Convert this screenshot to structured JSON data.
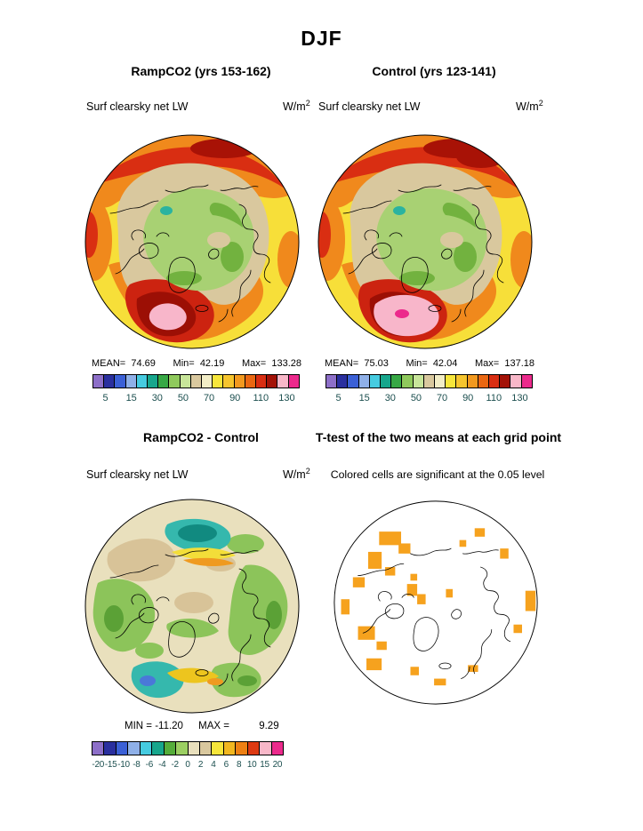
{
  "header": {
    "title": "DJF"
  },
  "panels": [
    {
      "title": "RampCO2 (yrs 153-162)",
      "field": "Surf clearsky net LW",
      "units_base": "W/m",
      "units_exp": "2",
      "stats": {
        "mean_label": "MEAN=",
        "mean": "74.69",
        "min_label": "Min=",
        "min": "42.19",
        "max_label": "Max=",
        "max": "133.28"
      },
      "colorbar": {
        "colors": [
          "#8d6fc8",
          "#2a2f9e",
          "#3b60d6",
          "#8fb0e8",
          "#46cbe0",
          "#17a68c",
          "#37a845",
          "#8fc95c",
          "#c8e59a",
          "#d9c89e",
          "#f2edc6",
          "#f7e63b",
          "#f6c52e",
          "#f2991f",
          "#ea6712",
          "#d92e12",
          "#a31207",
          "#f8b7c8",
          "#ec2a8c"
        ],
        "ticks": [
          "5",
          "15",
          "30",
          "50",
          "70",
          "90",
          "110",
          "130"
        ]
      }
    },
    {
      "title": "Control (yrs 123-141)",
      "field": "Surf clearsky net LW",
      "units_base": "W/m",
      "units_exp": "2",
      "stats": {
        "mean_label": "MEAN=",
        "mean": "75.03",
        "min_label": "Min=",
        "min": "42.04",
        "max_label": "Max=",
        "max": "137.18"
      },
      "colorbar": {
        "colors": [
          "#8d6fc8",
          "#2a2f9e",
          "#3b60d6",
          "#8fb0e8",
          "#46cbe0",
          "#17a68c",
          "#37a845",
          "#8fc95c",
          "#c8e59a",
          "#d9c89e",
          "#f2edc6",
          "#f7e63b",
          "#f6c52e",
          "#f2991f",
          "#ea6712",
          "#d92e12",
          "#a31207",
          "#f8b7c8",
          "#ec2a8c"
        ],
        "ticks": [
          "5",
          "15",
          "30",
          "50",
          "70",
          "90",
          "110",
          "130"
        ]
      }
    },
    {
      "title": "RampCO2 - Control",
      "field": "Surf clearsky net LW",
      "units_base": "W/m",
      "units_exp": "2",
      "stats": {
        "min_label": "MIN =",
        "min": "-11.20",
        "max_label": "MAX =",
        "max": "9.29"
      },
      "colorbar": {
        "colors": [
          "#8d6fc8",
          "#2a2f9e",
          "#3b60d6",
          "#8fb0e8",
          "#46cbe0",
          "#17a68c",
          "#55ad3a",
          "#9ccf62",
          "#e9e0bd",
          "#d9c89e",
          "#f7e63b",
          "#f2b71f",
          "#ee8013",
          "#dd3a12",
          "#f8b7c8",
          "#ec2a8c"
        ],
        "ticks": [
          "-20",
          "-15",
          "-10",
          "-8",
          "-6",
          "-4",
          "-2",
          "0",
          "2",
          "4",
          "6",
          "8",
          "10",
          "15",
          "20"
        ]
      }
    },
    {
      "title": "T-test of the two means at each grid point",
      "note": "Colored cells are significant at the 0.05 level"
    }
  ],
  "chart_data": [
    {
      "type": "heatmap",
      "subtype": "polar-stereographic-contour-map",
      "season": "DJF",
      "title": "RampCO2 (yrs 153-162)",
      "variable": "Surf clearsky net LW",
      "units": "W/m^2",
      "stats": {
        "mean": 74.69,
        "min": 42.19,
        "max": 133.28
      },
      "levels": [
        5,
        15,
        30,
        50,
        70,
        90,
        110,
        130
      ],
      "palette": [
        "#8d6fc8",
        "#2a2f9e",
        "#3b60d6",
        "#8fb0e8",
        "#46cbe0",
        "#17a68c",
        "#37a845",
        "#8fc95c",
        "#c8e59a",
        "#d9c89e",
        "#f2edc6",
        "#f7e63b",
        "#f6c52e",
        "#f2991f",
        "#ea6712",
        "#d92e12",
        "#a31207",
        "#f8b7c8",
        "#ec2a8c"
      ],
      "legend_position": "below"
    },
    {
      "type": "heatmap",
      "subtype": "polar-stereographic-contour-map",
      "season": "DJF",
      "title": "Control (yrs 123-141)",
      "variable": "Surf clearsky net LW",
      "units": "W/m^2",
      "stats": {
        "mean": 75.03,
        "min": 42.04,
        "max": 137.18
      },
      "levels": [
        5,
        15,
        30,
        50,
        70,
        90,
        110,
        130
      ],
      "palette": [
        "#8d6fc8",
        "#2a2f9e",
        "#3b60d6",
        "#8fb0e8",
        "#46cbe0",
        "#17a68c",
        "#37a845",
        "#8fc95c",
        "#c8e59a",
        "#d9c89e",
        "#f2edc6",
        "#f7e63b",
        "#f6c52e",
        "#f2991f",
        "#ea6712",
        "#d92e12",
        "#a31207",
        "#f8b7c8",
        "#ec2a8c"
      ],
      "legend_position": "below"
    },
    {
      "type": "heatmap",
      "subtype": "polar-stereographic-contour-map",
      "season": "DJF",
      "title": "RampCO2 - Control",
      "variable": "Surf clearsky net LW",
      "units": "W/m^2",
      "stats": {
        "min": -11.2,
        "max": 9.29
      },
      "levels": [
        -20,
        -15,
        -10,
        -8,
        -6,
        -4,
        -2,
        0,
        2,
        4,
        6,
        8,
        10,
        15,
        20
      ],
      "palette": [
        "#8d6fc8",
        "#2a2f9e",
        "#3b60d6",
        "#8fb0e8",
        "#46cbe0",
        "#17a68c",
        "#55ad3a",
        "#9ccf62",
        "#e9e0bd",
        "#d9c89e",
        "#f7e63b",
        "#f2b71f",
        "#ee8013",
        "#dd3a12",
        "#f8b7c8",
        "#ec2a8c"
      ],
      "legend_position": "below"
    },
    {
      "type": "heatmap",
      "subtype": "significance-mask-map",
      "season": "DJF",
      "title": "T-test of the two means at each grid point",
      "note": "Colored cells are significant at the 0.05 level",
      "significance_level": 0.05,
      "significant_color": "#f6a21e",
      "background_color": "#ffffff"
    }
  ]
}
